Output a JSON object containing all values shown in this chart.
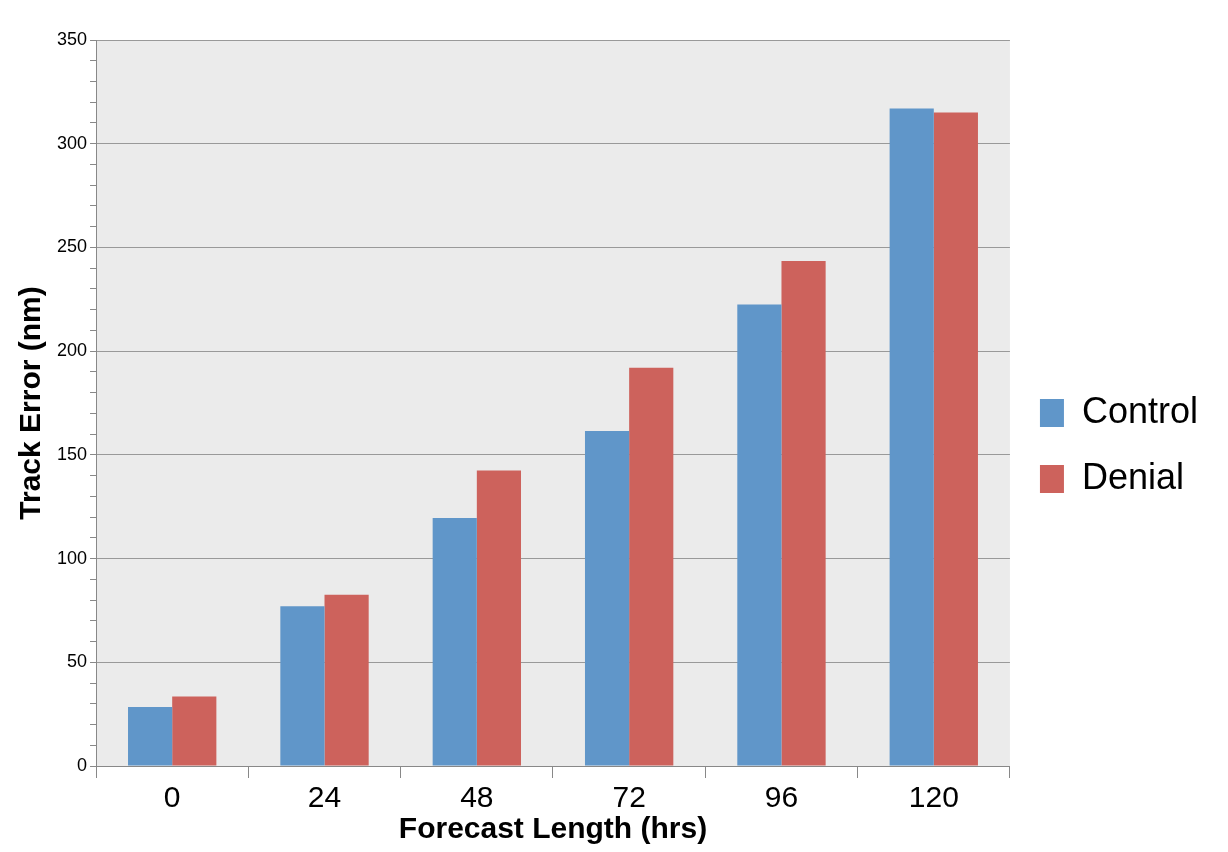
{
  "chart_data": {
    "type": "bar",
    "xlabel": "Forecast Length (hrs)",
    "ylabel": "Track Error (nm)",
    "categories": [
      "0",
      "24",
      "48",
      "72",
      "96",
      "120"
    ],
    "series": [
      {
        "name": "Control",
        "color": "#6096c9",
        "values": [
          28.5,
          77,
          119.5,
          161.5,
          222.5,
          317
        ]
      },
      {
        "name": "Denial",
        "color": "#cd625c",
        "values": [
          33.5,
          82.5,
          142.5,
          192,
          243.5,
          315
        ]
      }
    ],
    "ylim": [
      0,
      350
    ],
    "yticks": [
      0,
      {
        "value": 10,
        "label": null
      },
      {
        "value": 20,
        "label": null
      },
      {
        "value": 30,
        "label": null
      },
      {
        "value": 40,
        "label": null
      },
      50,
      {
        "value": 60,
        "label": null
      },
      {
        "value": 70,
        "label": null
      },
      {
        "value": 80,
        "label": null
      },
      {
        "value": 90,
        "label": null
      },
      100,
      {
        "value": 110,
        "label": null
      },
      {
        "value": 120,
        "label": null
      },
      {
        "value": 130,
        "label": null
      },
      {
        "value": 140,
        "label": null
      },
      150,
      {
        "value": 160,
        "label": null
      },
      {
        "value": 170,
        "label": null
      },
      {
        "value": 180,
        "label": null
      },
      {
        "value": 190,
        "label": null
      },
      200,
      {
        "value": 210,
        "label": null
      },
      {
        "value": 220,
        "label": null
      },
      {
        "value": 230,
        "label": null
      },
      {
        "value": 240,
        "label": null
      },
      250,
      {
        "value": 260,
        "label": null
      },
      {
        "value": 270,
        "label": null
      },
      {
        "value": 280,
        "label": null
      },
      {
        "value": 290,
        "label": null
      },
      300,
      {
        "value": 310,
        "label": null
      },
      {
        "value": 320,
        "label": null
      },
      {
        "value": 330,
        "label": null
      },
      {
        "value": 340,
        "label": null
      },
      350
    ],
    "grid": "y",
    "legend": "right"
  }
}
